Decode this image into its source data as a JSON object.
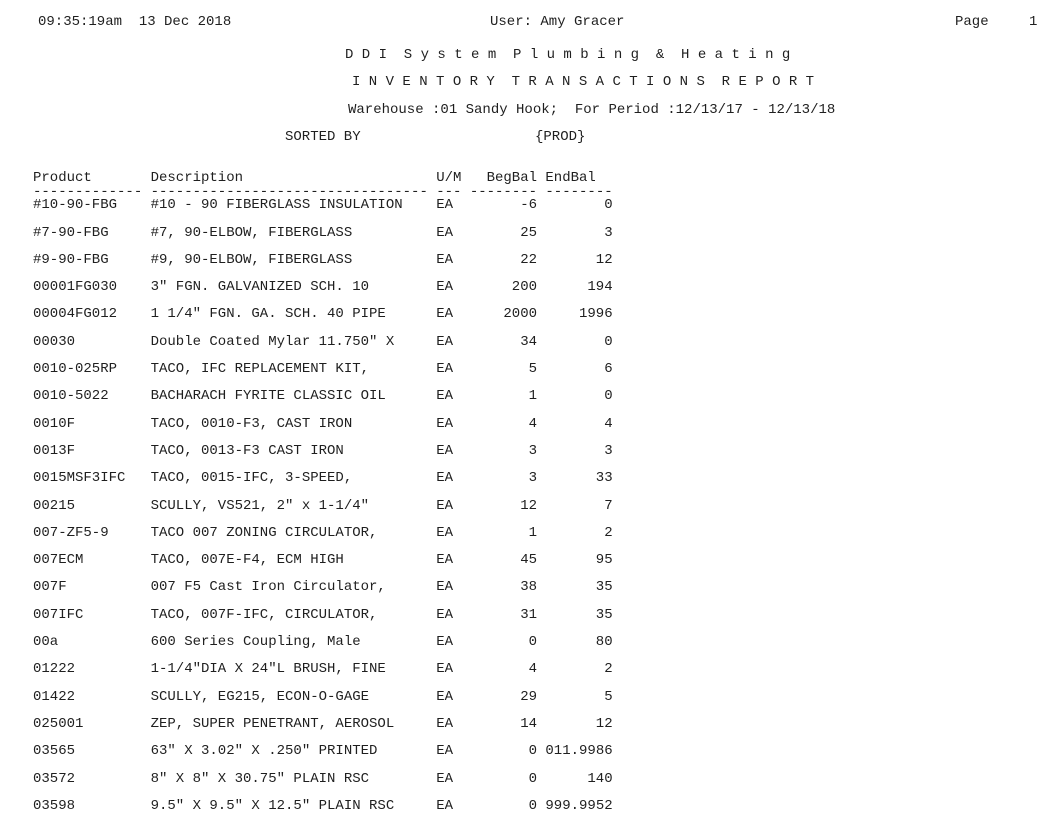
{
  "page": {
    "background": "#ffffff",
    "text_color": "#1f1f1f"
  },
  "header": {
    "timestamp": "09:35:19am  13 Dec 2018",
    "user_line": "User: Amy Gracer",
    "page_label": "Page",
    "page_number": "1",
    "company_title": "D D I  S y s t e m  P l u m b i n g  &  H e a t i n g",
    "report_title": "I N V E N T O R Y  T R A N S A C T I O N S  R E P O R T",
    "warehouse_period_line": "Warehouse :01 Sandy Hook;  For Period :12/13/17 - 12/13/18",
    "sorted_by_label": "SORTED BY",
    "sort_key": "{PROD}"
  },
  "table": {
    "columns": [
      {
        "key": "product",
        "label": "Product",
        "dashes": "-------------"
      },
      {
        "key": "description",
        "label": "Description",
        "dashes": "---------------------------------"
      },
      {
        "key": "um",
        "label": "U/M",
        "dashes": "---"
      },
      {
        "key": "begbal",
        "label": "BegBal",
        "dashes": "--------"
      },
      {
        "key": "endbal",
        "label": "EndBal",
        "dashes": "--------"
      }
    ],
    "rows": [
      {
        "product": "#10-90-FBG",
        "description": "#10 - 90 FIBERGLASS INSULATION",
        "um": "EA",
        "begbal": "-6",
        "endbal": "0"
      },
      {
        "product": "#7-90-FBG",
        "description": "#7, 90-ELBOW, FIBERGLASS",
        "um": "EA",
        "begbal": "25",
        "endbal": "3"
      },
      {
        "product": "#9-90-FBG",
        "description": "#9, 90-ELBOW, FIBERGLASS",
        "um": "EA",
        "begbal": "22",
        "endbal": "12"
      },
      {
        "product": "00001FG030",
        "description": "3\" FGN. GALVANIZED SCH. 10",
        "um": "EA",
        "begbal": "200",
        "endbal": "194"
      },
      {
        "product": "00004FG012",
        "description": "1 1/4\" FGN. GA. SCH. 40 PIPE",
        "um": "EA",
        "begbal": "2000",
        "endbal": "1996"
      },
      {
        "product": "00030",
        "description": "Double Coated Mylar 11.750\" X",
        "um": "EA",
        "begbal": "34",
        "endbal": "0"
      },
      {
        "product": "0010-025RP",
        "description": "TACO, IFC REPLACEMENT KIT,",
        "um": "EA",
        "begbal": "5",
        "endbal": "6"
      },
      {
        "product": "0010-5022",
        "description": "BACHARACH FYRITE CLASSIC OIL",
        "um": "EA",
        "begbal": "1",
        "endbal": "0"
      },
      {
        "product": "0010F",
        "description": "TACO, 0010-F3, CAST IRON",
        "um": "EA",
        "begbal": "4",
        "endbal": "4"
      },
      {
        "product": "0013F",
        "description": "TACO, 0013-F3 CAST IRON",
        "um": "EA",
        "begbal": "3",
        "endbal": "3"
      },
      {
        "product": "0015MSF3IFC",
        "description": "TACO, 0015-IFC, 3-SPEED,",
        "um": "EA",
        "begbal": "3",
        "endbal": "33"
      },
      {
        "product": "00215",
        "description": "SCULLY, VS521, 2\" x 1-1/4\"",
        "um": "EA",
        "begbal": "12",
        "endbal": "7"
      },
      {
        "product": "007-ZF5-9",
        "description": "TACO 007 ZONING CIRCULATOR,",
        "um": "EA",
        "begbal": "1",
        "endbal": "2"
      },
      {
        "product": "007ECM",
        "description": "TACO, 007E-F4, ECM HIGH",
        "um": "EA",
        "begbal": "45",
        "endbal": "95"
      },
      {
        "product": "007F",
        "description": "007 F5 Cast Iron Circulator,",
        "um": "EA",
        "begbal": "38",
        "endbal": "35"
      },
      {
        "product": "007IFC",
        "description": "TACO, 007F-IFC, CIRCULATOR,",
        "um": "EA",
        "begbal": "31",
        "endbal": "35"
      },
      {
        "product": "00a",
        "description": "600 Series Coupling, Male",
        "um": "EA",
        "begbal": "0",
        "endbal": "80"
      },
      {
        "product": "01222",
        "description": "1-1/4\"DIA X 24\"L BRUSH, FINE",
        "um": "EA",
        "begbal": "4",
        "endbal": "2"
      },
      {
        "product": "01422",
        "description": "SCULLY, EG215, ECON-O-GAGE",
        "um": "EA",
        "begbal": "29",
        "endbal": "5"
      },
      {
        "product": "025001",
        "description": "ZEP, SUPER PENETRANT, AEROSOL",
        "um": "EA",
        "begbal": "14",
        "endbal": "12"
      },
      {
        "product": "03565",
        "description": "63\" X 3.02\" X .250\" PRINTED",
        "um": "EA",
        "begbal": "0",
        "endbal": "011.9986"
      },
      {
        "product": "03572",
        "description": "8\" X 8\" X 30.75\" PLAIN RSC",
        "um": "EA",
        "begbal": "0",
        "endbal": "140"
      },
      {
        "product": "03598",
        "description": "9.5\" X 9.5\" X 12.5\" PLAIN RSC",
        "um": "EA",
        "begbal": "0",
        "endbal": "999.9952"
      }
    ]
  }
}
